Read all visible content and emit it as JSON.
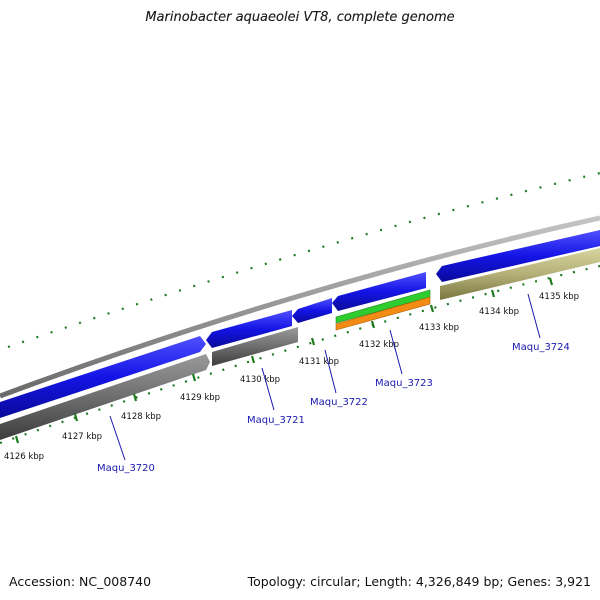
{
  "title": "Marinobacter aquaeolei VT8, complete genome",
  "footer": {
    "accession": "Accession: NC_008740",
    "summary": "Topology: circular; Length: 4,326,849 bp; Genes: 3,921"
  },
  "colors": {
    "forward_gene": "#1414e6",
    "reverse_gene": "#6e6e6e",
    "backbone": "#8a8a8a",
    "selected_gene": "#b4b078",
    "trna": "#2ecc2e",
    "rrna": "#f28c14",
    "tick": "#1e7a1e",
    "label": "#1a1ab0"
  },
  "kbp_labels": [
    "4126 kbp",
    "4127 kbp",
    "4128 kbp",
    "4129 kbp",
    "4130 kbp",
    "4131 kbp",
    "4132 kbp",
    "4133 kbp",
    "4134 kbp",
    "4135 kbp"
  ],
  "genes": [
    {
      "name": "Maqu_3720",
      "strand": "reverse"
    },
    {
      "name": "Maqu_3721",
      "strand": "forward"
    },
    {
      "name": "Maqu_3722",
      "strand": "forward"
    },
    {
      "name": "Maqu_3723",
      "strand": "forward"
    },
    {
      "name": "Maqu_3724",
      "strand": "reverse"
    }
  ]
}
